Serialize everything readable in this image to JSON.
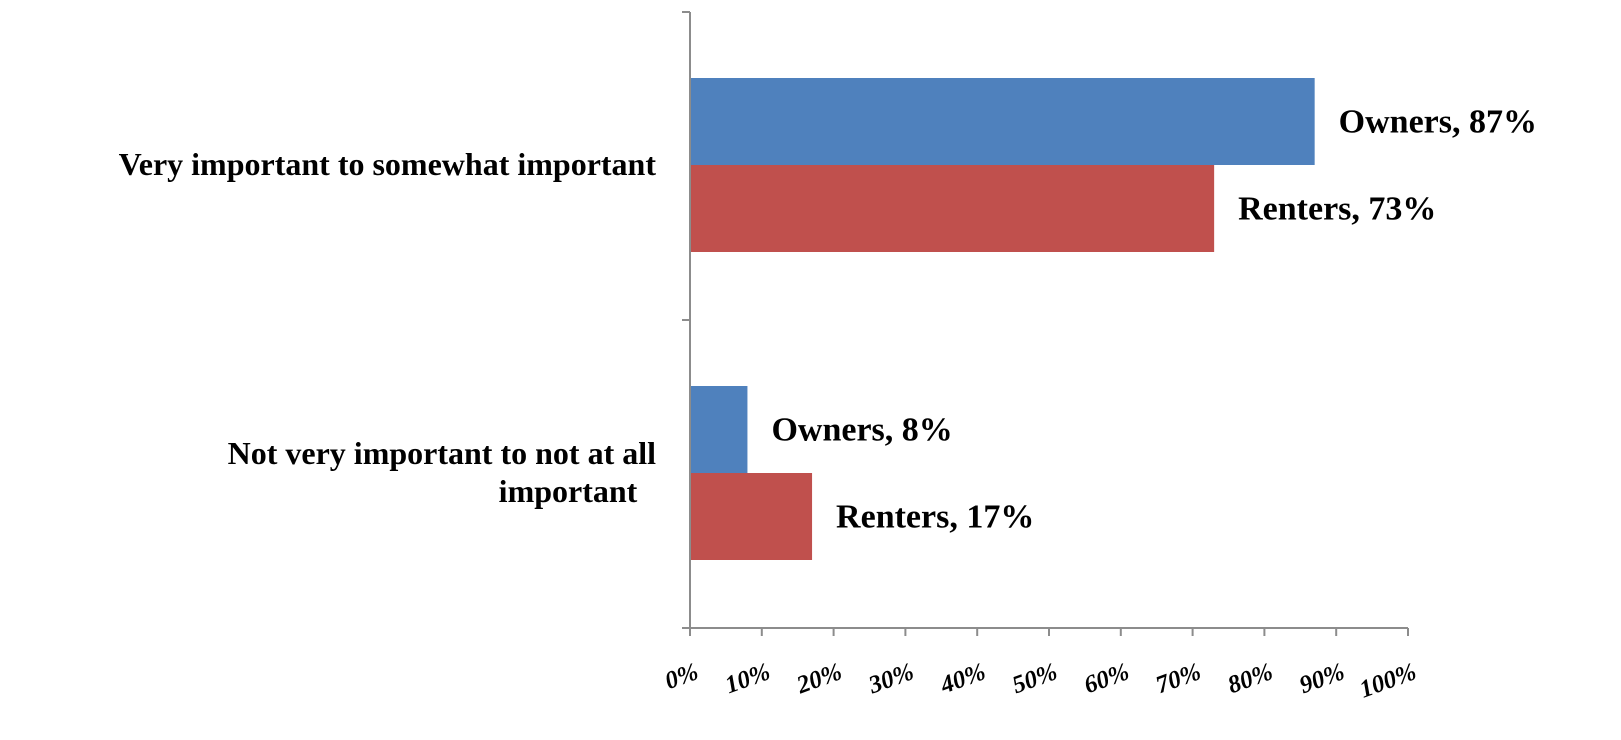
{
  "chart_data": {
    "type": "bar",
    "orientation": "horizontal",
    "categories": [
      "Very important to somewhat important",
      "Not very important to not at all important"
    ],
    "category_label_lines": [
      [
        "Very important to somewhat important"
      ],
      [
        "Not very important to not at all",
        "important"
      ]
    ],
    "series": [
      {
        "name": "Owners",
        "values": [
          87,
          8
        ],
        "data_labels": [
          "Owners, 87%",
          "Owners, 8%"
        ],
        "color": "#4f81bd"
      },
      {
        "name": "Renters",
        "values": [
          73,
          17
        ],
        "data_labels": [
          "Renters, 73%",
          "Renters, 17%"
        ],
        "color": "#c0504d"
      }
    ],
    "xlim": [
      0,
      100
    ],
    "x_ticks": [
      0,
      10,
      20,
      30,
      40,
      50,
      60,
      70,
      80,
      90,
      100
    ],
    "x_tick_labels": [
      "0%",
      "10%",
      "20%",
      "30%",
      "40%",
      "50%",
      "60%",
      "70%",
      "80%",
      "90%",
      "100%"
    ],
    "grid": false,
    "legend": "none",
    "title": "",
    "xlabel": "",
    "ylabel": ""
  }
}
